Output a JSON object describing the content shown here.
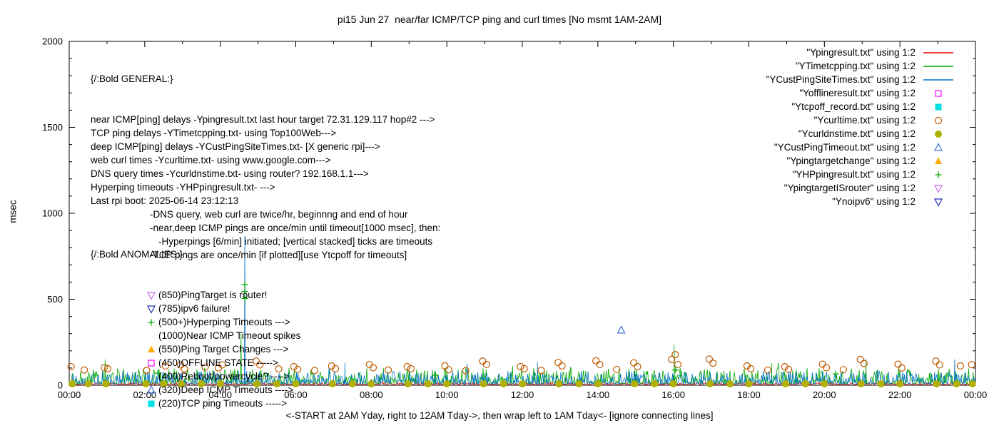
{
  "general_block": {
    "header": "{/:Bold GENERAL:}",
    "lines": [
      {
        "text": "near ICMP[ping] delays -Ypingresult.txt last hour target 72.31.129.117 hop#2 --->",
        "indent": 0
      },
      {
        "text": "TCP ping delays -YTimetcpping.txt- using Top100Web--->",
        "indent": 0
      },
      {
        "text": "deep ICMP[ping] delays -YCustPingSiteTimes.txt- [X generic rpi]--->",
        "indent": 0
      },
      {
        "text": "web curl times -Ycurltime.txt- using www.google.com--->",
        "indent": 0
      },
      {
        "text": "DNS query times -Ycurldnstime.txt- using router? 192.168.1.1--->",
        "indent": 0
      },
      {
        "text": "Hyperping timeouts -YHPpingresult.txt- --->",
        "indent": 0
      },
      {
        "text": "Last rpi boot: 2025-06-14 23:12:13",
        "indent": 0
      },
      {
        "text": "-DNS query, web curl are twice/hr, beginnng and end of hour",
        "indent": 1
      },
      {
        "text": "-near,deep ICMP pings are once/min until timeout[1000 msec], then:",
        "indent": 1
      },
      {
        "text": "-Hyperpings [6/min] initiated; [vertical stacked] ticks are timeouts",
        "indent": 2
      },
      {
        "text": "-TCP pings are once/min [if plotted][use Ytcpoff for timeouts]",
        "indent": 1
      }
    ]
  },
  "anomalies_block": {
    "header": "{/:Bold ANOMALIES:}",
    "items": [
      {
        "marker": "triangle-down-open",
        "color": "#c868e8",
        "text": "(850)PingTarget is router!"
      },
      {
        "marker": "triangle-down-open",
        "color": "#2233bb",
        "text": "(785)ipv6 failure!"
      },
      {
        "marker": "plus",
        "color": "#00a800",
        "text": "(500+)Hyperping Timeouts --->"
      },
      {
        "marker": "none",
        "color": "#000000",
        "text": "(1000)Near ICMP Timeout spikes"
      },
      {
        "marker": "triangle-filled",
        "color": "#ffaa00",
        "text": "(550)Ping Target Changes --->"
      },
      {
        "marker": "square-open",
        "color": "#ff00ff",
        "text": "(450)OFFLINE STATE ----->"
      },
      {
        "marker": "none",
        "color": "#000000",
        "text": "(400)Reboot/powercycle? ---->"
      },
      {
        "marker": "triangle-open",
        "color": "#4070d0",
        "text": "(320)Deep ICMP Timeouts ---->"
      },
      {
        "marker": "square-filled",
        "color": "#00e0e0",
        "text": "(220)TCP ping Timeouts ----->"
      }
    ]
  },
  "chart_data": {
    "type": "line+scatter",
    "title": "pi15 Jun 27  near/far ICMP/TCP ping and curl times [No msmt 1AM-2AM]",
    "xlabel": "<-START at 2AM Yday, right to 12AM Tday->, then wrap left to 1AM Tday<- [ignore connecting lines]",
    "ylabel": "msec",
    "xlim": [
      0,
      24
    ],
    "ylim": [
      0,
      2000
    ],
    "x_tick_hours": [
      0,
      2,
      4,
      6,
      8,
      10,
      12,
      14,
      16,
      18,
      20,
      22,
      24
    ],
    "x_tick_labels": [
      "00:00",
      "02:00",
      "04:00",
      "06:00",
      "08:00",
      "10:00",
      "12:00",
      "14:00",
      "16:00",
      "18:00",
      "20:00",
      "22:00",
      "00:00"
    ],
    "y_ticks": [
      0,
      500,
      1000,
      1500,
      2000
    ],
    "grid": false,
    "legend_position": "top-right",
    "series": [
      {
        "file": "Ypingresult.txt",
        "legend": "\"Ypingresult.txt\" using 1:2",
        "color": "#e80000",
        "sample": "line",
        "plot": "noise",
        "base": 3,
        "amp": 12,
        "power": 2,
        "seed": 7,
        "step": 0.02,
        "spikes": []
      },
      {
        "file": "YTimetcpping.txt",
        "legend": "\"YTimetcpping.txt\" using 1:2",
        "color": "#00a800",
        "sample": "line",
        "plot": "noise",
        "base": 10,
        "amp": 90,
        "power": 3,
        "seed": 13,
        "step": 0.02,
        "spikes": [
          [
            0.95,
            150
          ],
          [
            4.55,
            300
          ],
          [
            16.02,
            235
          ],
          [
            21.1,
            155
          ],
          [
            18.6,
            130
          ]
        ]
      },
      {
        "file": "YCustPingSiteTimes.txt",
        "legend": "\"YCustPingSiteTimes.txt\" using 1:2",
        "color": "#0072c6",
        "sample": "line",
        "plot": "noise",
        "base": 8,
        "amp": 75,
        "power": 3,
        "seed": 29,
        "step": 0.02,
        "spikes": [
          [
            4.65,
            868
          ],
          [
            7.3,
            130
          ],
          [
            12.4,
            135
          ],
          [
            23.45,
            150
          ]
        ]
      },
      {
        "file": "Yofflineresult.txt",
        "legend": "\"Yofflineresult.txt\" using 1:2",
        "color": "#ff00ff",
        "sample": "square-open",
        "plot": "scatter",
        "points": []
      },
      {
        "file": "Ytcpoff_record.txt",
        "legend": "\"Ytcpoff_record.txt\" using 1:2",
        "color": "#00e0e0",
        "sample": "square-filled",
        "plot": "scatter",
        "points": []
      },
      {
        "file": "Ycurltime.txt",
        "legend": "\"Ycurltime.txt\" using 1:2",
        "color": "#c05a00",
        "sample": "circle-open",
        "plot": "scatter",
        "points": [
          [
            0.05,
            108
          ],
          [
            0.4,
            88
          ],
          [
            0.93,
            102
          ],
          [
            1.02,
            96
          ],
          [
            2.05,
            86
          ],
          [
            2.55,
            112
          ],
          [
            2.95,
            118
          ],
          [
            3.05,
            95
          ],
          [
            3.6,
            105
          ],
          [
            3.95,
            100
          ],
          [
            4.05,
            118
          ],
          [
            4.95,
            140
          ],
          [
            5.05,
            118
          ],
          [
            5.55,
            95
          ],
          [
            5.95,
            108
          ],
          [
            6.05,
            92
          ],
          [
            6.5,
            85
          ],
          [
            6.95,
            112
          ],
          [
            7.05,
            96
          ],
          [
            7.95,
            120
          ],
          [
            8.05,
            102
          ],
          [
            8.45,
            88
          ],
          [
            8.95,
            108
          ],
          [
            9.05,
            96
          ],
          [
            9.95,
            112
          ],
          [
            10.05,
            90
          ],
          [
            10.5,
            84
          ],
          [
            10.95,
            140
          ],
          [
            11.05,
            120
          ],
          [
            11.95,
            108
          ],
          [
            12.05,
            96
          ],
          [
            12.5,
            86
          ],
          [
            12.95,
            132
          ],
          [
            13.05,
            112
          ],
          [
            13.95,
            142
          ],
          [
            14.05,
            120
          ],
          [
            14.5,
            92
          ],
          [
            14.95,
            130
          ],
          [
            15.05,
            108
          ],
          [
            15.95,
            150
          ],
          [
            16.05,
            178
          ],
          [
            16.12,
            120
          ],
          [
            16.95,
            152
          ],
          [
            17.05,
            128
          ],
          [
            17.95,
            112
          ],
          [
            18.05,
            96
          ],
          [
            18.5,
            88
          ],
          [
            18.95,
            108
          ],
          [
            19.05,
            92
          ],
          [
            19.95,
            122
          ],
          [
            20.05,
            102
          ],
          [
            20.5,
            90
          ],
          [
            20.95,
            150
          ],
          [
            21.05,
            126
          ],
          [
            21.95,
            122
          ],
          [
            22.05,
            100
          ],
          [
            22.95,
            140
          ],
          [
            23.05,
            118
          ],
          [
            23.6,
            112
          ],
          [
            23.9,
            120
          ]
        ]
      },
      {
        "file": "Ycurldnstime.txt",
        "legend": "\"Ycurldnstime.txt\" using 1:2",
        "color": "#b0b000",
        "sample": "circle-filled",
        "plot": "scatter",
        "points": [
          [
            0.08,
            8
          ],
          [
            0.5,
            8
          ],
          [
            0.97,
            8
          ],
          [
            2.03,
            8
          ],
          [
            2.5,
            8
          ],
          [
            2.97,
            8
          ],
          [
            3.5,
            8
          ],
          [
            4.0,
            8
          ],
          [
            4.97,
            8
          ],
          [
            5.5,
            8
          ],
          [
            6.0,
            8
          ],
          [
            6.97,
            8
          ],
          [
            7.5,
            8
          ],
          [
            8.0,
            8
          ],
          [
            8.97,
            8
          ],
          [
            9.5,
            8
          ],
          [
            10.0,
            8
          ],
          [
            10.97,
            8
          ],
          [
            11.5,
            8
          ],
          [
            12.0,
            8
          ],
          [
            12.97,
            8
          ],
          [
            13.5,
            8
          ],
          [
            14.0,
            8
          ],
          [
            14.97,
            8
          ],
          [
            15.5,
            8
          ],
          [
            16.0,
            8
          ],
          [
            16.97,
            8
          ],
          [
            17.5,
            8
          ],
          [
            18.0,
            8
          ],
          [
            18.97,
            8
          ],
          [
            19.5,
            8
          ],
          [
            20.0,
            8
          ],
          [
            20.97,
            8
          ],
          [
            21.5,
            8
          ],
          [
            22.0,
            8
          ],
          [
            22.97,
            8
          ],
          [
            23.5,
            8
          ],
          [
            23.92,
            8
          ]
        ]
      },
      {
        "file": "YCustPingTimeout.txt",
        "legend": "\"YCustPingTimeout.txt\" using 1:2",
        "color": "#4070d0",
        "sample": "triangle-open",
        "plot": "scatter",
        "points": [
          [
            14.62,
            320
          ]
        ]
      },
      {
        "file": "Ypingtargetchange",
        "legend": "\"Ypingtargetchange\" using 1:2",
        "color": "#ffaa00",
        "sample": "triangle-filled",
        "plot": "scatter",
        "points": []
      },
      {
        "file": "YHPpingresult.txt",
        "legend": "\"YHPpingresult.txt\" using 1:2",
        "color": "#00a800",
        "sample": "plus",
        "plot": "scatter",
        "points": [
          [
            4.65,
            505
          ],
          [
            4.65,
            545
          ],
          [
            4.65,
            585
          ],
          [
            2.35,
            70
          ],
          [
            9.7,
            58
          ],
          [
            16.06,
            88
          ],
          [
            20.3,
            66
          ]
        ]
      },
      {
        "file": "YpingtargetISrouter",
        "legend": "\"YpingtargetISrouter\" using 1:2",
        "color": "#c868e8",
        "sample": "triangle-down-open",
        "plot": "scatter",
        "points": []
      },
      {
        "file": "Ynoipv6",
        "legend": "\"Ynoipv6\" using 1:2",
        "color": "#2233bb",
        "sample": "triangle-down-open",
        "plot": "scatter",
        "points": []
      }
    ]
  }
}
